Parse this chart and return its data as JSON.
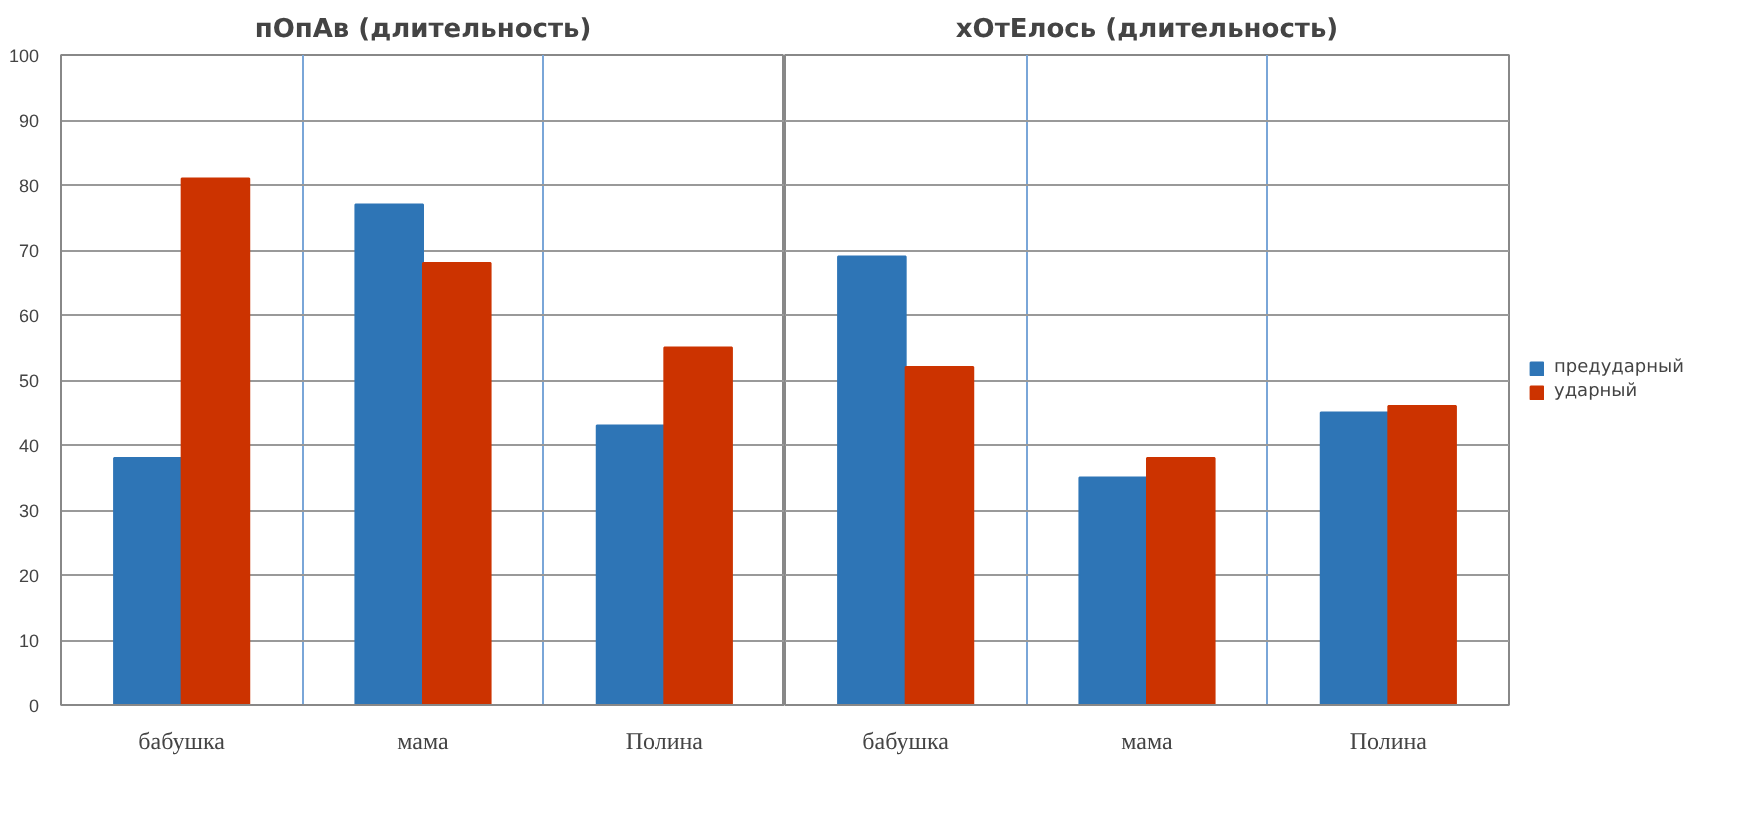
{
  "chart_data": [
    {
      "type": "bar",
      "title": "пОпАв (длительность)",
      "categories": [
        "бабушка",
        "мама",
        "Полина"
      ],
      "series": [
        {
          "color": "#2e75b6",
          "values": [
            38,
            77,
            43
          ]
        },
        {
          "color": "#cc3300",
          "values": [
            81,
            68,
            55
          ]
        }
      ],
      "ylim": [
        0,
        100
      ],
      "yticks": [
        0,
        10,
        20,
        30,
        40,
        50,
        60,
        70,
        80,
        90,
        100
      ],
      "grid": true,
      "legend": false
    },
    {
      "type": "bar",
      "title": "хОтЕлось (длительность)",
      "categories": [
        "бабушка",
        "мама",
        "Полина"
      ],
      "series": [
        {
          "name": "предударный",
          "color": "#2e75b6",
          "values": [
            69,
            35,
            45
          ]
        },
        {
          "name": "ударный",
          "color": "#cc3300",
          "values": [
            52,
            38,
            46
          ]
        }
      ],
      "ylim": [
        0,
        100
      ],
      "yticks": [
        0,
        10,
        20,
        30,
        40,
        50,
        60,
        70,
        80,
        90,
        100
      ],
      "grid": true,
      "legend": "right",
      "tick_labels": "x"
    }
  ]
}
